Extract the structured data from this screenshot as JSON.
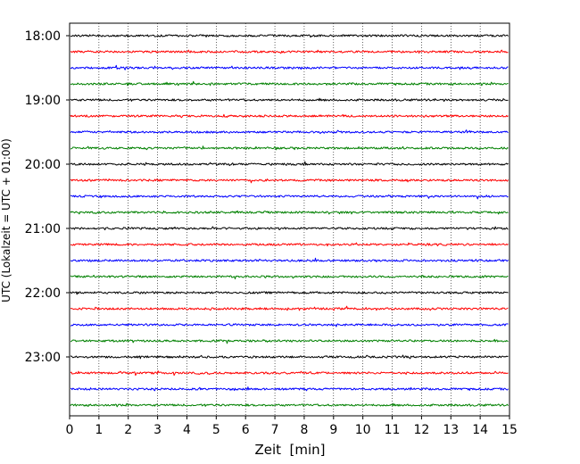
{
  "chart_data": {
    "type": "line",
    "title": "",
    "xlabel": "Zeit  [min]",
    "ylabel": "UTC (Lokalzeit = UTC + 01:00)",
    "xlim": [
      0,
      15
    ],
    "x_ticks": [
      "0",
      "1",
      "2",
      "3",
      "4",
      "5",
      "6",
      "7",
      "8",
      "9",
      "10",
      "11",
      "12",
      "13",
      "14",
      "15"
    ],
    "y_tick_labels": [
      "18:00",
      "19:00",
      "20:00",
      "21:00",
      "22:00",
      "23:00"
    ],
    "grid": {
      "vertical": true,
      "style": "dotted"
    },
    "trace_interval_min": 15,
    "trace_colors": [
      "#000000",
      "#ff0000",
      "#0000ff",
      "#008000"
    ],
    "traces": [
      {
        "start": "18:00",
        "color": "#000000"
      },
      {
        "start": "18:15",
        "color": "#ff0000"
      },
      {
        "start": "18:30",
        "color": "#0000ff"
      },
      {
        "start": "18:45",
        "color": "#008000"
      },
      {
        "start": "19:00",
        "color": "#000000"
      },
      {
        "start": "19:15",
        "color": "#ff0000"
      },
      {
        "start": "19:30",
        "color": "#0000ff"
      },
      {
        "start": "19:45",
        "color": "#008000"
      },
      {
        "start": "20:00",
        "color": "#000000"
      },
      {
        "start": "20:15",
        "color": "#ff0000"
      },
      {
        "start": "20:30",
        "color": "#0000ff"
      },
      {
        "start": "20:45",
        "color": "#008000"
      },
      {
        "start": "21:00",
        "color": "#000000"
      },
      {
        "start": "21:15",
        "color": "#ff0000"
      },
      {
        "start": "21:30",
        "color": "#0000ff"
      },
      {
        "start": "21:45",
        "color": "#008000"
      },
      {
        "start": "22:00",
        "color": "#000000"
      },
      {
        "start": "22:15",
        "color": "#ff0000"
      },
      {
        "start": "22:30",
        "color": "#0000ff"
      },
      {
        "start": "22:45",
        "color": "#008000"
      },
      {
        "start": "23:00",
        "color": "#000000"
      },
      {
        "start": "23:15",
        "color": "#ff0000"
      },
      {
        "start": "23:30",
        "color": "#0000ff"
      },
      {
        "start": "23:45",
        "color": "#008000"
      }
    ]
  }
}
